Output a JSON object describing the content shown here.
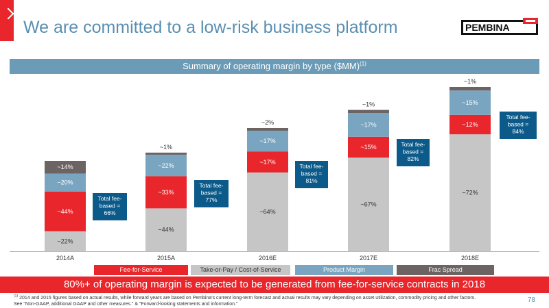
{
  "header": {
    "title": "We are committed to a low-risk business platform",
    "logo_text": "PEMBINA"
  },
  "banner": {
    "text": "Summary of operating margin by type ($MM)",
    "footnote_ref": "(1)"
  },
  "chart_data": {
    "type": "bar",
    "stacked": true,
    "categories": [
      "2014A",
      "2015A",
      "2016E",
      "2017E",
      "2018E"
    ],
    "series": [
      {
        "name": "Fee-for-Service",
        "color": "#e8262b",
        "labels": [
          "~44%",
          "~33%",
          "~17%",
          "~15%",
          "~12%"
        ]
      },
      {
        "name": "Take-or-Pay / Cost-of-Service",
        "color": "#c6c6c6",
        "labels": [
          "~22%",
          "~44%",
          "~64%",
          "~67%",
          "~72%"
        ]
      },
      {
        "name": "Product Margin",
        "color": "#7aa5c1",
        "labels": [
          "~20%",
          "~22%",
          "~17%",
          "~17%",
          "~15%"
        ]
      },
      {
        "name": "Frac Spread",
        "color": "#6b6462",
        "labels": [
          "~14%",
          "~1%",
          "~2%",
          "~1%",
          "~1%"
        ]
      }
    ],
    "total_heights": [
      0.55,
      0.6,
      0.75,
      0.86,
      1.0
    ],
    "callouts": [
      {
        "lines": [
          "Total fee-",
          "based =",
          "66%"
        ]
      },
      {
        "lines": [
          "Total fee-",
          "based =",
          "77%"
        ]
      },
      {
        "lines": [
          "Total fee-",
          "based =",
          "81%"
        ]
      },
      {
        "lines": [
          "Total fee-",
          "based =",
          "82%"
        ]
      },
      {
        "lines": [
          "Total fee-",
          "based =",
          "84%"
        ]
      }
    ],
    "callout_color": "#0b5a8a"
  },
  "legend": [
    {
      "label": "Fee-for-Service",
      "bg": "#e8262b",
      "fg": "#ffffff"
    },
    {
      "label": "Take-or-Pay / Cost-of-Service",
      "bg": "#c6c6c6",
      "fg": "#333333"
    },
    {
      "label": "Product Margin",
      "bg": "#7aa5c1",
      "fg": "#ffffff"
    },
    {
      "label": "Frac Spread",
      "bg": "#6b6462",
      "fg": "#ffffff"
    }
  ],
  "bottom_banner": "80%+ of operating margin is expected to be generated from fee-for-service contracts in 2018",
  "footnote": {
    "marker": "(1)",
    "line1": " 2014 and 2015 figures based on actual results, while forward years are based on Pembina's current long-term forecast and actual results may vary depending on asset utilization, commodity pricing and other factors.",
    "line2": "See \"Non-GAAP, additional GAAP and other measures.\" & \"Forward-looking statements and information.\""
  },
  "page_number": "78"
}
